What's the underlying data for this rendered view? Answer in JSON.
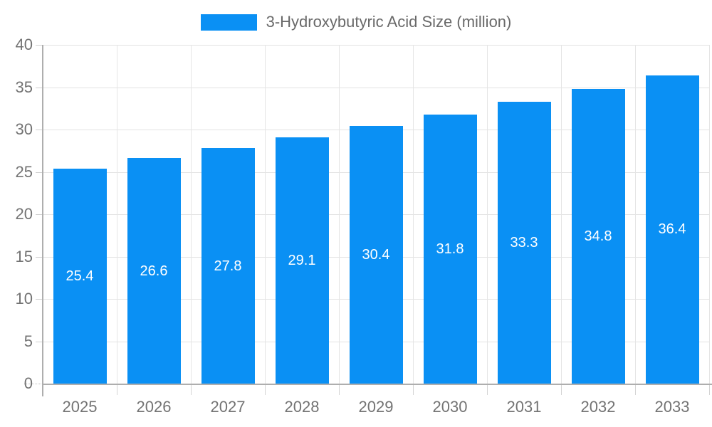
{
  "legend": {
    "label": "3-Hydroxybutyric Acid Size (million)"
  },
  "colors": {
    "bar": "#0a90f4",
    "bar_label": "#ffffff",
    "grid": "#e3e3e3",
    "axis": "#aeaeae",
    "tick_label": "#737373",
    "legend_text": "#696969",
    "background": "#ffffff"
  },
  "chart_data": {
    "type": "bar",
    "title": "3-Hydroxybutyric Acid Size (million)",
    "categories": [
      "2025",
      "2026",
      "2027",
      "2028",
      "2029",
      "2030",
      "2031",
      "2032",
      "2033"
    ],
    "series": [
      {
        "name": "3-Hydroxybutyric Acid Size (million)",
        "values": [
          25.4,
          26.6,
          27.8,
          29.1,
          30.4,
          31.8,
          33.3,
          34.8,
          36.4
        ]
      }
    ],
    "xlabel": "",
    "ylabel": "",
    "ylim": [
      0,
      40
    ],
    "ytick_step": 5,
    "yticks": [
      0,
      5,
      10,
      15,
      20,
      25,
      30,
      35,
      40
    ],
    "grid": true,
    "vertical_grid": true,
    "bar_value_labels": true,
    "legend_position": "top-center"
  }
}
